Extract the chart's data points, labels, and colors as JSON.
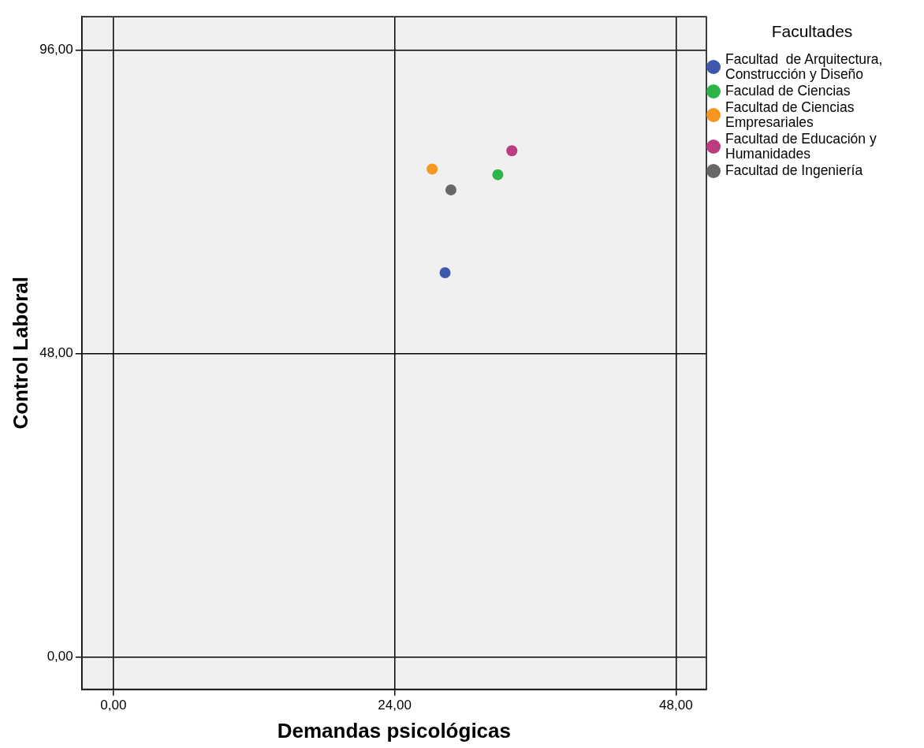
{
  "chart_data": {
    "type": "scatter",
    "xlabel": "Demandas psicológicas",
    "ylabel": "Control Laboral",
    "legend_title": "Facultades",
    "xlim": [
      -2.7,
      50.6
    ],
    "ylim": [
      -5.1,
      101.3
    ],
    "xticks": [
      {
        "value": 0,
        "label": "0,00"
      },
      {
        "value": 24,
        "label": "24,00"
      },
      {
        "value": 48,
        "label": "48,00"
      }
    ],
    "yticks": [
      {
        "value": 0,
        "label": "0,00"
      },
      {
        "value": 48,
        "label": "48,00"
      },
      {
        "value": 96,
        "label": "96,00"
      }
    ],
    "grid": true,
    "legend": "right",
    "marker": "circle",
    "series": [
      {
        "name": "Facultad  de Arquitectura, Construcción y Diseño",
        "color": "#3e58ac",
        "x": [
          28.3
        ],
        "values": [
          60.8
        ]
      },
      {
        "name": "Faculad de Ciencias",
        "color": "#2eb54a",
        "x": [
          32.8
        ],
        "values": [
          76.3
        ]
      },
      {
        "name": "Facultad de Ciencias Empresariales",
        "color": "#f8971f",
        "x": [
          27.2
        ],
        "values": [
          77.2
        ]
      },
      {
        "name": "Facultad de Educación y Humanidades",
        "color": "#bb3d7f",
        "x": [
          34.0
        ],
        "values": [
          80.1
        ]
      },
      {
        "name": "Facultad de Ingeniería",
        "color": "#676767",
        "x": [
          28.8
        ],
        "values": [
          73.9
        ]
      }
    ]
  }
}
